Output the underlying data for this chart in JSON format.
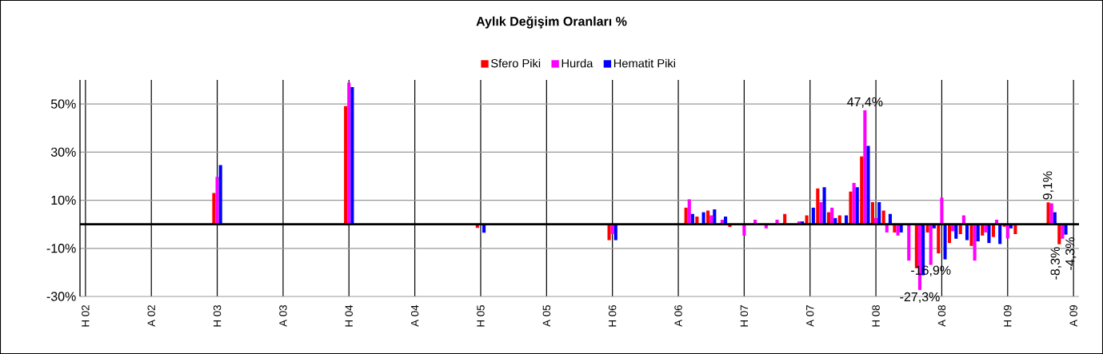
{
  "chart_data": {
    "type": "bar",
    "title": "Aylık Değişim Oranları %",
    "categories": [
      "H 02",
      null,
      null,
      null,
      null,
      null,
      "A 02",
      null,
      null,
      null,
      null,
      null,
      "H 03",
      null,
      null,
      null,
      null,
      null,
      "A 03",
      null,
      null,
      null,
      null,
      null,
      "H 04",
      null,
      null,
      null,
      null,
      null,
      "A 04",
      null,
      null,
      null,
      null,
      null,
      "H 05",
      null,
      null,
      null,
      null,
      null,
      "A 05",
      null,
      null,
      null,
      null,
      null,
      "H 06",
      null,
      null,
      null,
      null,
      null,
      "A 06",
      null,
      null,
      null,
      null,
      null,
      "H 07",
      null,
      null,
      null,
      null,
      null,
      "A 07",
      null,
      null,
      null,
      null,
      null,
      "H 08",
      null,
      null,
      null,
      null,
      null,
      "A 08",
      null,
      null,
      null,
      null,
      null,
      "H 09",
      null,
      null,
      null,
      null,
      null,
      "A 09"
    ],
    "series": [
      {
        "name": "Sfero Piki",
        "color": "#ff0000",
        "values": [
          null,
          null,
          null,
          null,
          null,
          null,
          null,
          null,
          null,
          null,
          null,
          null,
          13,
          null,
          null,
          null,
          null,
          null,
          null,
          null,
          null,
          null,
          null,
          null,
          49.1,
          null,
          null,
          null,
          null,
          null,
          null,
          null,
          null,
          null,
          null,
          null,
          -1.5,
          null,
          null,
          null,
          null,
          null,
          null,
          null,
          null,
          null,
          null,
          null,
          -6.6,
          null,
          null,
          null,
          null,
          null,
          null,
          6.9,
          3.2,
          5.7,
          null,
          -1.1,
          null,
          null,
          null,
          null,
          4.3,
          null,
          3.7,
          14.9,
          5.0,
          3.7,
          13.6,
          28.2,
          9.2,
          5.7,
          -3.4,
          null,
          -18.2,
          -3.4,
          -12.1,
          -7.8,
          -4.1,
          -9.0,
          -4.7,
          -5.3,
          -1.0,
          -4.1,
          null,
          null,
          9.1,
          -8.3,
          null
        ],
        "value_labels": [
          null,
          null,
          null,
          null,
          null,
          null,
          null,
          null,
          null,
          null,
          null,
          null,
          null,
          null,
          null,
          null,
          null,
          null,
          null,
          null,
          null,
          null,
          null,
          null,
          null,
          null,
          null,
          null,
          null,
          null,
          null,
          null,
          null,
          null,
          null,
          null,
          null,
          null,
          null,
          null,
          null,
          null,
          null,
          null,
          null,
          null,
          null,
          null,
          null,
          null,
          null,
          null,
          null,
          null,
          null,
          null,
          null,
          null,
          null,
          null,
          null,
          null,
          null,
          null,
          null,
          null,
          null,
          null,
          null,
          null,
          null,
          null,
          null,
          null,
          null,
          null,
          null,
          null,
          null,
          null,
          null,
          null,
          null,
          null,
          null,
          null,
          null,
          null,
          "9,1%",
          "-8,3%",
          null
        ]
      },
      {
        "name": "Hurda",
        "color": "#ff00ff",
        "values": [
          null,
          null,
          null,
          null,
          null,
          null,
          null,
          null,
          null,
          null,
          null,
          null,
          19.7,
          null,
          null,
          null,
          null,
          null,
          null,
          null,
          null,
          null,
          null,
          null,
          58.8,
          null,
          null,
          null,
          null,
          null,
          null,
          null,
          null,
          null,
          null,
          null,
          null,
          null,
          null,
          null,
          null,
          null,
          null,
          null,
          null,
          null,
          null,
          null,
          -4.1,
          null,
          null,
          null,
          null,
          null,
          null,
          10.4,
          null,
          3.7,
          1.9,
          null,
          -4.7,
          1.9,
          -1.7,
          1.9,
          null,
          1.2,
          null,
          9.2,
          6.9,
          null,
          17.2,
          47.4,
          2.6,
          -3.4,
          -4.7,
          -15.1,
          -27.3,
          -16.9,
          11.1,
          -2.9,
          3.7,
          -15.1,
          -3.4,
          1.9,
          -5.9,
          null,
          null,
          null,
          8.7,
          -6.0,
          null
        ],
        "value_labels": [
          null,
          null,
          null,
          null,
          null,
          null,
          null,
          null,
          null,
          null,
          null,
          null,
          null,
          null,
          null,
          null,
          null,
          null,
          null,
          null,
          null,
          null,
          null,
          null,
          null,
          null,
          null,
          null,
          null,
          null,
          null,
          null,
          null,
          null,
          null,
          null,
          null,
          null,
          null,
          null,
          null,
          null,
          null,
          null,
          null,
          null,
          null,
          null,
          null,
          null,
          null,
          null,
          null,
          null,
          null,
          null,
          null,
          null,
          null,
          null,
          null,
          null,
          null,
          null,
          null,
          null,
          null,
          null,
          null,
          null,
          null,
          "47,4%",
          null,
          null,
          null,
          null,
          "-27,3%",
          "-16,9%",
          null,
          null,
          null,
          null,
          null,
          null,
          null,
          null,
          null,
          null,
          null,
          null,
          null
        ]
      },
      {
        "name": "Hematit Piki",
        "color": "#0000ff",
        "values": [
          null,
          null,
          null,
          null,
          null,
          null,
          null,
          null,
          null,
          null,
          null,
          null,
          24.6,
          null,
          null,
          null,
          null,
          null,
          null,
          null,
          null,
          null,
          null,
          null,
          57.0,
          null,
          null,
          null,
          null,
          null,
          null,
          null,
          null,
          null,
          null,
          null,
          -3.5,
          null,
          null,
          null,
          null,
          null,
          null,
          null,
          null,
          null,
          null,
          null,
          -6.6,
          null,
          null,
          null,
          null,
          null,
          null,
          4.3,
          5.0,
          6.2,
          3.2,
          null,
          null,
          null,
          null,
          null,
          null,
          1.2,
          6.9,
          15.4,
          2.6,
          3.7,
          15.4,
          32.6,
          9.2,
          4.3,
          -3.4,
          null,
          -21.2,
          -1.7,
          -14.6,
          -6.0,
          -6.6,
          -7.1,
          -7.8,
          -8.2,
          -1.7,
          null,
          null,
          null,
          5.0,
          -4.3,
          null
        ],
        "value_labels": [
          null,
          null,
          null,
          null,
          null,
          null,
          null,
          null,
          null,
          null,
          null,
          null,
          null,
          null,
          null,
          null,
          null,
          null,
          null,
          null,
          null,
          null,
          null,
          null,
          null,
          null,
          null,
          null,
          null,
          null,
          null,
          null,
          null,
          null,
          null,
          null,
          null,
          null,
          null,
          null,
          null,
          null,
          null,
          null,
          null,
          null,
          null,
          null,
          null,
          null,
          null,
          null,
          null,
          null,
          null,
          null,
          null,
          null,
          null,
          null,
          null,
          null,
          null,
          null,
          null,
          null,
          null,
          null,
          null,
          null,
          null,
          null,
          null,
          null,
          null,
          null,
          null,
          null,
          null,
          null,
          null,
          null,
          null,
          null,
          null,
          null,
          null,
          null,
          null,
          "-4,3%",
          null
        ]
      }
    ],
    "ylim": [
      -30,
      60
    ],
    "yticks": [
      {
        "value": -30,
        "label": "-30%"
      },
      {
        "value": -10,
        "label": "-10%"
      },
      {
        "value": 10,
        "label": "10%"
      },
      {
        "value": 30,
        "label": "30%"
      },
      {
        "value": 50,
        "label": "50%"
      }
    ],
    "grid": true,
    "legend": "top"
  }
}
